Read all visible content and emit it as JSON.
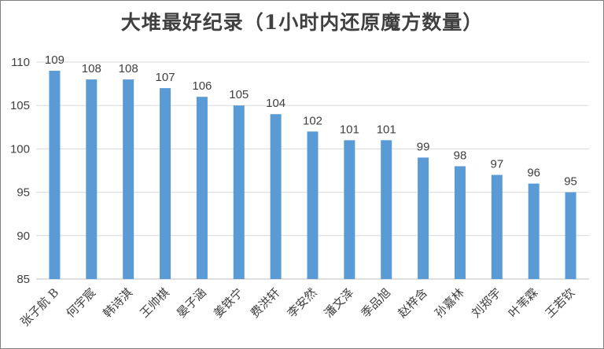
{
  "chart_data": {
    "type": "bar",
    "title": "大堆最好纪录（1小时内还原魔方数量）",
    "xlabel": "",
    "ylabel": "",
    "ylim": [
      85,
      110
    ],
    "yticks": [
      85,
      90,
      95,
      100,
      105,
      110
    ],
    "grid": true,
    "bar_color": "#5b9bd5",
    "categories": [
      "张子航 B",
      "何宇宸",
      "韩诗淇",
      "王帅棋",
      "晏子涵",
      "姜铁宁",
      "费洪轩",
      "李安然",
      "潘文泽",
      "季品旭",
      "赵梓含",
      "孙嘉林",
      "刘郑宇",
      "叶苇霖",
      "王若钦"
    ],
    "values": [
      109,
      108,
      108,
      107,
      106,
      105,
      104,
      102,
      101,
      101,
      99,
      98,
      97,
      96,
      95
    ]
  }
}
